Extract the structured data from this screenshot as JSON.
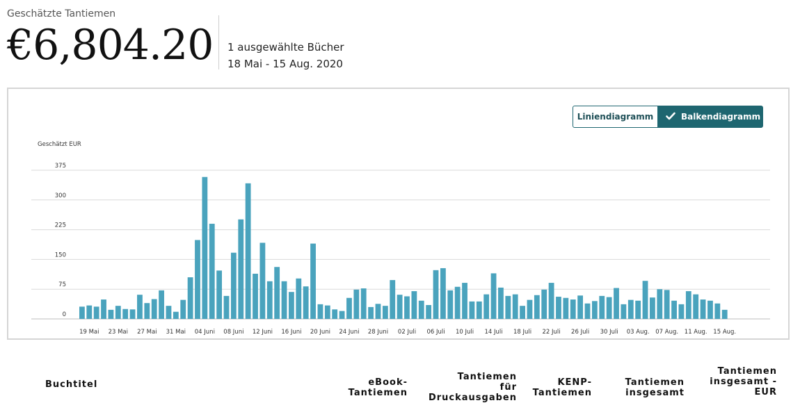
{
  "header": {
    "estimate_label": "Geschätzte Tantiemen",
    "total": "€6,804.20",
    "selected_books": "1 ausgewählte Bücher",
    "date_range": "18 Mai - 15 Aug. 2020"
  },
  "toggle": {
    "line_label": "Liniendiagramm",
    "bar_label": "Balkendiagramm",
    "active": "bar"
  },
  "table": {
    "headers": [
      {
        "key": "title",
        "label": "Buchtitel"
      },
      {
        "key": "ebook",
        "label": "eBook-\nTantiemen"
      },
      {
        "key": "print",
        "label": "Tantiemen\nfür\nDruckausgaben"
      },
      {
        "key": "kenp",
        "label": "KENP-\nTantiemen"
      },
      {
        "key": "total",
        "label": "Tantiemen\ninsgesamt"
      },
      {
        "key": "total_eur",
        "label": "Tantiemen\ninsgesamt -\nEUR"
      }
    ]
  },
  "colors": {
    "bar": "#4aa3bd",
    "accent": "#1e6670",
    "grid": "#d9d9d9"
  },
  "chart_data": {
    "type": "bar",
    "ylabel": "Geschätzt EUR",
    "ylim": [
      0,
      375
    ],
    "yticks": [
      0,
      75,
      150,
      225,
      300,
      375
    ],
    "grid": true,
    "xtick_labels": [
      "19 Mai",
      "23 Mai",
      "27 Mai",
      "31 Mai",
      "04 Juni",
      "08 Juni",
      "12 Juni",
      "16 Juni",
      "20 Juni",
      "24 Juni",
      "28 Juni",
      "02 Juli",
      "06 Juli",
      "10 Juli",
      "14 Juli",
      "18 Juli",
      "22 Juli",
      "26 Juli",
      "30 Juli",
      "03 Aug.",
      "07 Aug.",
      "11 Aug.",
      "15 Aug."
    ],
    "xtick_every": 4,
    "xtick_offset": 1,
    "categories": [
      "18 Mai",
      "19 Mai",
      "20 Mai",
      "21 Mai",
      "22 Mai",
      "23 Mai",
      "24 Mai",
      "25 Mai",
      "26 Mai",
      "27 Mai",
      "28 Mai",
      "29 Mai",
      "30 Mai",
      "31 Mai",
      "01 Juni",
      "02 Juni",
      "03 Juni",
      "04 Juni",
      "05 Juni",
      "06 Juni",
      "07 Juni",
      "08 Juni",
      "09 Juni",
      "10 Juni",
      "11 Juni",
      "12 Juni",
      "13 Juni",
      "14 Juni",
      "15 Juni",
      "16 Juni",
      "17 Juni",
      "18 Juni",
      "19 Juni",
      "20 Juni",
      "21 Juni",
      "22 Juni",
      "23 Juni",
      "24 Juni",
      "25 Juni",
      "26 Juni",
      "27 Juni",
      "28 Juni",
      "29 Juni",
      "30 Juni",
      "01 Juli",
      "02 Juli",
      "03 Juli",
      "04 Juli",
      "05 Juli",
      "06 Juli",
      "07 Juli",
      "08 Juli",
      "09 Juli",
      "10 Juli",
      "11 Juli",
      "12 Juli",
      "13 Juli",
      "14 Juli",
      "15 Juli",
      "16 Juli",
      "17 Juli",
      "18 Juli",
      "19 Juli",
      "20 Juli",
      "21 Juli",
      "22 Juli",
      "23 Juli",
      "24 Juli",
      "25 Juli",
      "26 Juli",
      "27 Juli",
      "28 Juli",
      "29 Juli",
      "30 Juli",
      "31 Juli",
      "01 Aug.",
      "02 Aug.",
      "03 Aug.",
      "04 Aug.",
      "05 Aug.",
      "06 Aug.",
      "07 Aug.",
      "08 Aug.",
      "09 Aug.",
      "10 Aug.",
      "11 Aug.",
      "12 Aug.",
      "13 Aug.",
      "14 Aug.",
      "15 Aug."
    ],
    "values": [
      31,
      34,
      31,
      49,
      23,
      33,
      25,
      24,
      61,
      40,
      50,
      72,
      33,
      18,
      48,
      105,
      199,
      358,
      240,
      122,
      58,
      167,
      251,
      342,
      114,
      192,
      95,
      131,
      95,
      68,
      102,
      82,
      190,
      37,
      34,
      24,
      20,
      53,
      74,
      77,
      30,
      38,
      33,
      98,
      61,
      57,
      70,
      46,
      35,
      123,
      128,
      72,
      81,
      91,
      44,
      44,
      62,
      115,
      79,
      58,
      62,
      33,
      48,
      60,
      74,
      91,
      56,
      53,
      49,
      59,
      39,
      45,
      58,
      55,
      78,
      37,
      48,
      46,
      96,
      54,
      75,
      73,
      46,
      37,
      70,
      62,
      49,
      46,
      39,
      23
    ]
  }
}
